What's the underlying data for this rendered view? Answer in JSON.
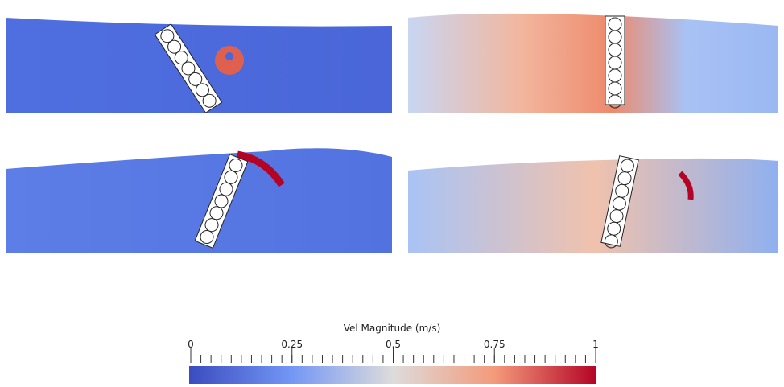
{
  "colorbar": {
    "title": "Vel Magnitude (m/s)",
    "range": [
      0,
      1
    ],
    "ticks": [
      0,
      0.25,
      0.5,
      0.75,
      1
    ]
  }
}
